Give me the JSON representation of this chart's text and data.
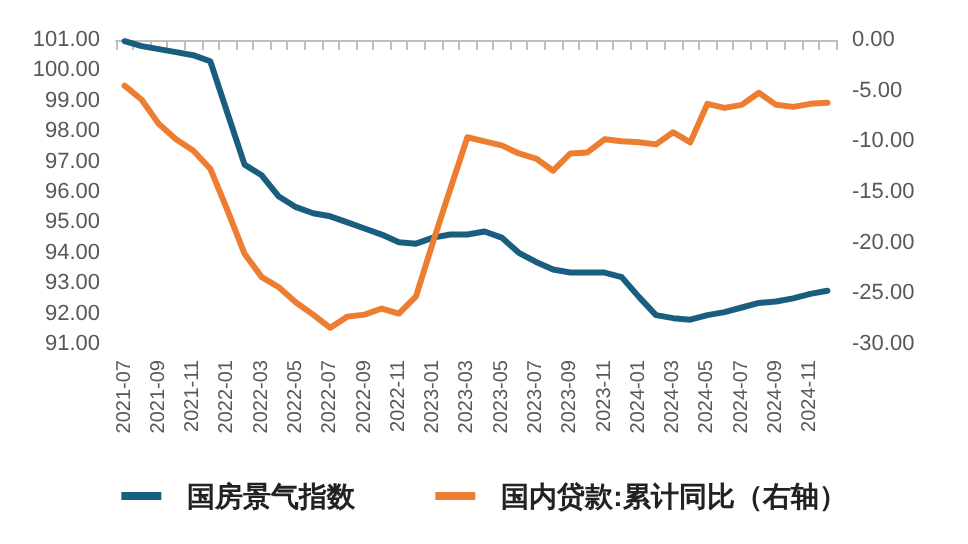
{
  "chart_data": {
    "type": "line",
    "categories": [
      "2021-07",
      null,
      "2021-09",
      null,
      "2021-11",
      null,
      "2022-01",
      null,
      "2022-03",
      null,
      "2022-05",
      null,
      "2022-07",
      null,
      "2022-09",
      null,
      "2022-11",
      null,
      "2023-01",
      null,
      "2023-03",
      null,
      "2023-05",
      null,
      "2023-07",
      null,
      "2023-09",
      null,
      "2023-11",
      null,
      "2024-01",
      null,
      "2024-03",
      null,
      "2024-05",
      null,
      "2024-07",
      null,
      "2024-09",
      null,
      "2024-11",
      null
    ],
    "series": [
      {
        "name": "国房景气指数",
        "color": "#1a5e7f",
        "values": [
          100.96,
          100.8,
          100.7,
          100.6,
          100.5,
          100.3,
          98.6,
          96.9,
          96.55,
          95.85,
          95.5,
          95.3,
          95.2,
          95.0,
          94.8,
          94.6,
          94.35,
          94.3,
          94.5,
          94.6,
          94.6,
          94.7,
          94.5,
          94.0,
          93.7,
          93.45,
          93.35,
          93.35,
          93.35,
          93.2,
          92.55,
          91.95,
          91.85,
          91.8,
          91.95,
          92.05,
          92.2,
          92.35,
          92.4,
          92.5,
          92.65,
          92.75
        ]
      },
      {
        "name": "国内贷款:累计同比（右轴）",
        "color": "#ed7d31",
        "axis": "y2",
        "values": [
          -4.5,
          -5.9,
          -8.3,
          -9.8,
          -10.9,
          -12.7,
          -16.8,
          -21.1,
          -23.4,
          -24.4,
          -25.9,
          -27.1,
          -28.4,
          -27.3,
          -27.1,
          -26.5,
          -27.0,
          -25.3,
          -19.9,
          -14.7,
          -9.6,
          -10.0,
          -10.4,
          -11.2,
          -11.7,
          -12.9,
          -11.2,
          -11.1,
          -9.8,
          -10.0,
          -10.1,
          -10.3,
          -9.1,
          -10.1,
          -6.3,
          -6.7,
          -6.4,
          -5.2,
          -6.4,
          -6.6,
          -6.3,
          -6.2
        ]
      }
    ],
    "ylim": [
      91,
      101
    ],
    "yticks": [
      {
        "value": 91,
        "label": "91.00"
      },
      {
        "value": 92,
        "label": "92.00"
      },
      {
        "value": 93,
        "label": "93.00"
      },
      {
        "value": 94,
        "label": "94.00"
      },
      {
        "value": 95,
        "label": "95.00"
      },
      {
        "value": 96,
        "label": "96.00"
      },
      {
        "value": 97,
        "label": "97.00"
      },
      {
        "value": 98,
        "label": "98.00"
      },
      {
        "value": 99,
        "label": "99.00"
      },
      {
        "value": 100,
        "label": "100.00"
      },
      {
        "value": 101,
        "label": "101.00"
      }
    ],
    "y2lim": [
      -30,
      0
    ],
    "y2ticks": [
      {
        "value": -30,
        "label": "-30.00"
      },
      {
        "value": -25,
        "label": "-25.00"
      },
      {
        "value": -20,
        "label": "-20.00"
      },
      {
        "value": -15,
        "label": "-15.00"
      },
      {
        "value": -10,
        "label": "-10.00"
      },
      {
        "value": -5,
        "label": "-5.00"
      },
      {
        "value": 0,
        "label": "0.00"
      }
    ],
    "grid": false,
    "legend": "bottom",
    "marker": "none",
    "line_style": "solid"
  }
}
